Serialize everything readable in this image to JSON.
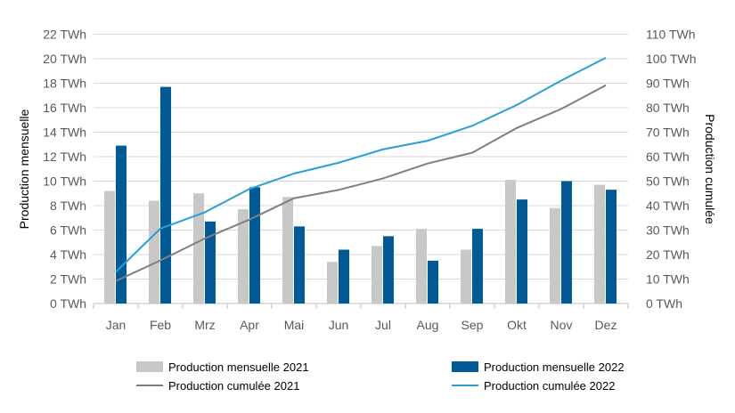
{
  "chart_data": {
    "type": "bar",
    "categories": [
      "Jan",
      "Feb",
      "Mrz",
      "Apr",
      "Mai",
      "Jun",
      "Jul",
      "Aug",
      "Sep",
      "Okt",
      "Nov",
      "Dez"
    ],
    "left_axis": {
      "label": "Production mensuelle",
      "unit": "TWh",
      "ylim": [
        0,
        22
      ],
      "ticks": [
        "0 TWh",
        "2 TWh",
        "4 TWh",
        "6 TWh",
        "8 TWh",
        "10 TWh",
        "12 TWh",
        "14 TWh",
        "16 TWh",
        "18 TWh",
        "20 TWh",
        "22 TWh"
      ]
    },
    "right_axis": {
      "label": "Production cumulée",
      "unit": "TWh",
      "ylim": [
        0,
        110
      ],
      "ticks": [
        "0 TWh",
        "10 TWh",
        "20 TWh",
        "30 TWh",
        "40 TWh",
        "50 TWh",
        "60 TWh",
        "70 TWh",
        "80 TWh",
        "90 TWh",
        "100 TWh",
        "110 TWh"
      ]
    },
    "grid": true,
    "legend_position": "bottom",
    "series": [
      {
        "name": "Production mensuelle 2021",
        "type": "bar",
        "axis": "left",
        "color": "#c8c8c8",
        "values": [
          9.2,
          8.4,
          9.0,
          7.7,
          8.7,
          3.4,
          4.7,
          6.1,
          4.4,
          10.1,
          7.8,
          9.7
        ]
      },
      {
        "name": "Production mensuelle 2022",
        "type": "bar",
        "axis": "left",
        "color": "#005a96",
        "values": [
          12.9,
          17.7,
          6.7,
          9.5,
          6.3,
          4.4,
          5.5,
          3.5,
          6.1,
          8.5,
          10.0,
          9.3
        ]
      },
      {
        "name": "Production cumulée 2021",
        "type": "line",
        "axis": "right",
        "color": "#7f7f7f",
        "values": [
          9.2,
          17.6,
          26.6,
          34.3,
          43.0,
          46.4,
          51.1,
          57.2,
          61.6,
          71.7,
          79.5,
          89.2
        ]
      },
      {
        "name": "Production cumulée 2022",
        "type": "line",
        "axis": "right",
        "color": "#2a9fd6",
        "values": [
          12.9,
          30.6,
          37.3,
          46.8,
          53.1,
          57.5,
          63.0,
          66.5,
          72.6,
          81.1,
          91.1,
          100.4
        ]
      }
    ]
  }
}
